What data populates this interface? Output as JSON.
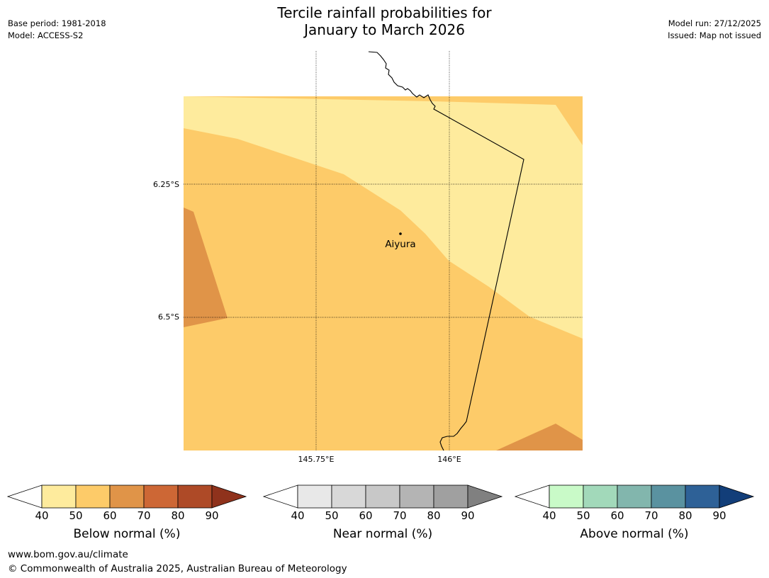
{
  "header": {
    "title_line1": "Tercile rainfall probabilities for",
    "title_line2": "January to March 2026",
    "base_period": "Base period: 1981-2018",
    "model": "Model: ACCESS-S2",
    "model_run": "Model run: 27/12/2025",
    "issued": "Issued: Map not issued"
  },
  "map": {
    "place_label": "Aiyura",
    "lat_labels": [
      "6.25°S",
      "6.5°S"
    ],
    "lon_labels": [
      "145.75°E",
      "146°E"
    ],
    "colors": {
      "light_yellow": "#FEEB9D",
      "yellow_orange": "#FDCB69",
      "orange": "#E09448"
    }
  },
  "colorbars": [
    {
      "title": "Below normal (%)",
      "ticks": [
        "40",
        "50",
        "60",
        "70",
        "80",
        "90"
      ],
      "colors": [
        "#FFFFFF",
        "#FEEB9D",
        "#FDCB69",
        "#E09448",
        "#CD6735",
        "#AE4A27",
        "#8F321C"
      ]
    },
    {
      "title": "Near normal (%)",
      "ticks": [
        "40",
        "50",
        "60",
        "70",
        "80",
        "90"
      ],
      "colors": [
        "#FFFFFF",
        "#E8E8E8",
        "#D8D8D8",
        "#C8C8C8",
        "#B4B4B4",
        "#A0A0A0",
        "#808080"
      ]
    },
    {
      "title": "Above normal (%)",
      "ticks": [
        "40",
        "50",
        "60",
        "70",
        "80",
        "90"
      ],
      "colors": [
        "#FFFFFF",
        "#C9FAC8",
        "#A2D9BA",
        "#82B6AD",
        "#5A92A0",
        "#2E6197",
        "#123E79"
      ]
    }
  ],
  "footer": {
    "url": "www.bom.gov.au/climate",
    "copyright": "© Commonwealth of Australia 2025, Australian Bureau of Meteorology"
  }
}
